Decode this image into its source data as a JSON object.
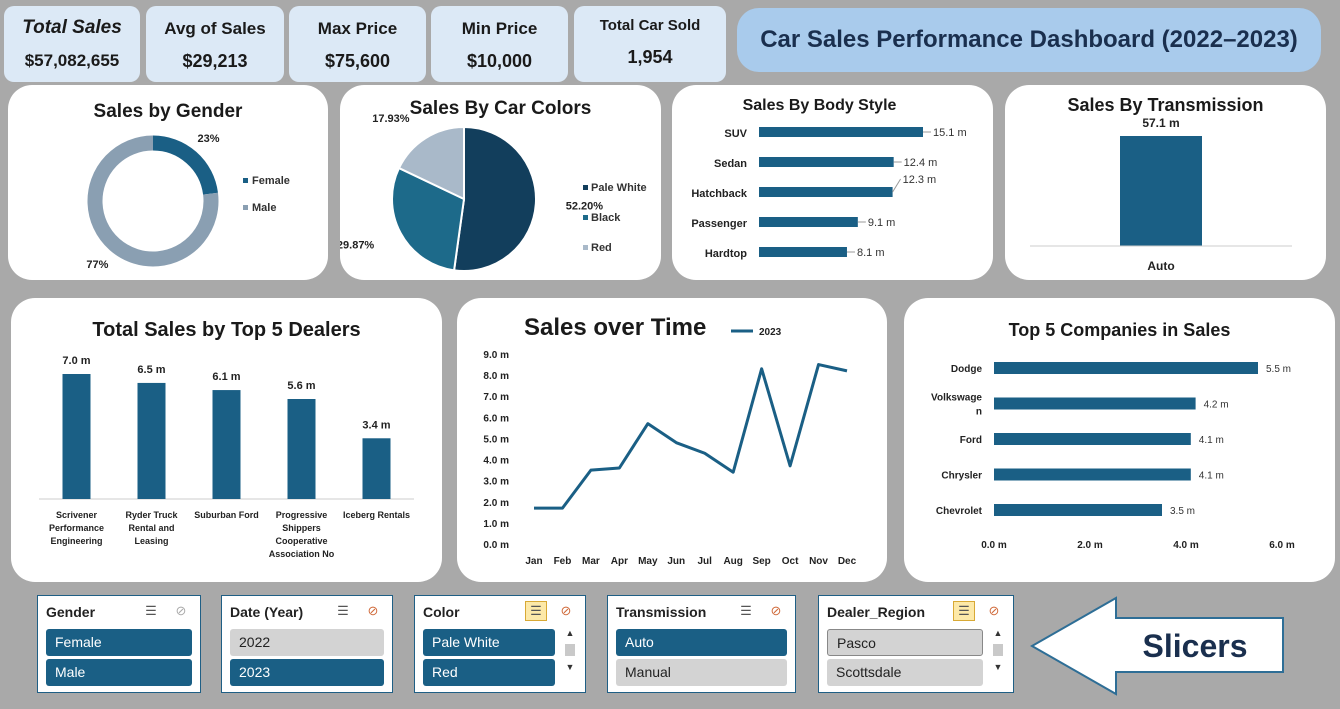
{
  "kpis": [
    {
      "label": "Total Sales",
      "value": "$57,082,655"
    },
    {
      "label": "Avg of Sales",
      "value": "$29,213"
    },
    {
      "label": "Max Price",
      "value": "$75,600"
    },
    {
      "label": "Min Price",
      "value": "$10,000"
    },
    {
      "label": "Total Car Sold",
      "value": "1,954"
    }
  ],
  "dashboard_title": "Car Sales Performance Dashboard (2022–2023)",
  "colors": {
    "primary": "#1a5f85",
    "dark": "#13405e",
    "mid": "#1d6a8a",
    "light_gray_blue": "#8a9fb2",
    "pale": "#a9b9c9"
  },
  "chart_data": [
    {
      "type": "pie",
      "title": "Sales by Gender",
      "donut": true,
      "categories": [
        "Female",
        "Male"
      ],
      "values": [
        23,
        77
      ],
      "labels": [
        "23%",
        "77%"
      ],
      "colors": [
        "#1a5f85",
        "#8a9fb2"
      ],
      "legend": "right"
    },
    {
      "type": "pie",
      "title": "Sales By Car Colors",
      "categories": [
        "Pale White",
        "Black",
        "Red"
      ],
      "values": [
        52.2,
        29.87,
        17.93
      ],
      "labels": [
        "52.20%",
        "29.87%",
        "17.93%"
      ],
      "colors": [
        "#123e5c",
        "#1d6a8a",
        "#a9b9c9"
      ],
      "legend": "right"
    },
    {
      "type": "bar",
      "orientation": "horizontal",
      "title": "Sales By Body Style",
      "categories": [
        "SUV",
        "Sedan",
        "Hatchback",
        "Passenger",
        "Hardtop"
      ],
      "values": [
        15.1,
        12.4,
        12.3,
        9.1,
        8.1
      ],
      "labels": [
        "15.1 m",
        "12.4 m",
        "12.3 m",
        "9.1 m",
        "8.1 m"
      ]
    },
    {
      "type": "bar",
      "title": "Sales By Transmission",
      "categories": [
        "Auto"
      ],
      "values": [
        57.1
      ],
      "labels": [
        "57.1 m"
      ]
    },
    {
      "type": "bar",
      "title": "Total Sales by Top 5 Dealers",
      "categories": [
        "Scrivener Performance Engineering",
        "Ryder Truck Rental and Leasing",
        "Suburban Ford",
        "Progressive Shippers Cooperative Association No",
        "Iceberg Rentals"
      ],
      "category_lines": [
        [
          "Scrivener",
          "Performance",
          "Engineering"
        ],
        [
          "Ryder Truck",
          "Rental and",
          "Leasing"
        ],
        [
          "Suburban Ford"
        ],
        [
          "Progressive",
          "Shippers",
          "Cooperative",
          "Association No"
        ],
        [
          "Iceberg Rentals"
        ]
      ],
      "values": [
        7.0,
        6.5,
        6.1,
        5.6,
        3.4
      ],
      "labels": [
        "7.0 m",
        "6.5 m",
        "6.1 m",
        "5.6 m",
        "3.4 m"
      ]
    },
    {
      "type": "line",
      "title": "Sales over Time",
      "x": [
        "Jan",
        "Feb",
        "Mar",
        "Apr",
        "May",
        "Jun",
        "Jul",
        "Aug",
        "Sep",
        "Oct",
        "Nov",
        "Dec"
      ],
      "series": [
        {
          "name": "2023",
          "values": [
            1.7,
            1.7,
            3.5,
            3.6,
            5.7,
            4.8,
            4.3,
            3.4,
            8.3,
            3.7,
            8.5,
            8.2
          ]
        }
      ],
      "ylim": [
        0,
        9
      ],
      "yticks": [
        "0.0 m",
        "1.0 m",
        "2.0 m",
        "3.0 m",
        "4.0 m",
        "5.0 m",
        "6.0 m",
        "7.0 m",
        "8.0 m",
        "9.0 m"
      ],
      "legend": "top"
    },
    {
      "type": "bar",
      "orientation": "horizontal",
      "title": "Top 5 Companies in Sales",
      "categories": [
        "Dodge",
        "Volkswagen",
        "Ford",
        "Chrysler",
        "Chevrolet"
      ],
      "category_lines": [
        [
          "Dodge"
        ],
        [
          "Volkswage",
          "n"
        ],
        [
          "Ford"
        ],
        [
          "Chrysler"
        ],
        [
          "Chevrolet"
        ]
      ],
      "values": [
        5.5,
        4.2,
        4.1,
        4.1,
        3.5
      ],
      "labels": [
        "5.5 m",
        "4.2 m",
        "4.1 m",
        "4.1 m",
        "3.5 m"
      ],
      "xlim": [
        0,
        6
      ],
      "xticks": [
        "0.0 m",
        "2.0 m",
        "4.0 m",
        "6.0 m"
      ]
    }
  ],
  "slicers": [
    {
      "title": "Gender",
      "items": [
        {
          "label": "Female",
          "selected": true
        },
        {
          "label": "Male",
          "selected": true
        }
      ]
    },
    {
      "title": "Date (Year)",
      "items": [
        {
          "label": "2022",
          "selected": false
        },
        {
          "label": "2023",
          "selected": true
        }
      ]
    },
    {
      "title": "Color",
      "items": [
        {
          "label": "Pale White",
          "selected": true
        },
        {
          "label": "Red",
          "selected": true
        }
      ]
    },
    {
      "title": "Transmission",
      "items": [
        {
          "label": "Auto",
          "selected": true
        },
        {
          "label": "Manual",
          "selected": false
        }
      ]
    },
    {
      "title": "Dealer_Region",
      "items": [
        {
          "label": "Pasco",
          "selected": false
        },
        {
          "label": "Scottsdale",
          "selected": false
        }
      ]
    }
  ],
  "slicers_label": "Slicers"
}
